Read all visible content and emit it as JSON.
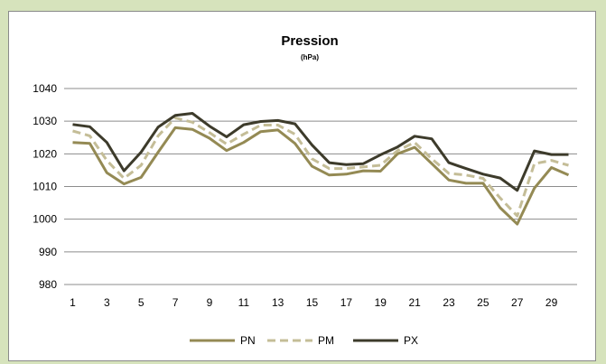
{
  "chart_data": {
    "type": "line",
    "title": "Pression",
    "subtitle": "(hPa)",
    "xlabel": "",
    "ylabel": "",
    "x": [
      1,
      2,
      3,
      4,
      5,
      6,
      7,
      8,
      9,
      10,
      11,
      12,
      13,
      14,
      15,
      16,
      17,
      18,
      19,
      20,
      21,
      22,
      23,
      24,
      25,
      26,
      27,
      28,
      29,
      30
    ],
    "x_tick_labels": [
      "1",
      "3",
      "5",
      "7",
      "9",
      "11",
      "13",
      "15",
      "17",
      "19",
      "21",
      "23",
      "25",
      "27",
      "29"
    ],
    "ylim": [
      980,
      1040
    ],
    "y_ticks": [
      "980",
      "990",
      "1000",
      "1010",
      "1020",
      "1030",
      "1040"
    ],
    "grid": true,
    "legend_position": "bottom",
    "series": [
      {
        "name": "PN",
        "color": "#948a54",
        "dash": "solid",
        "values": [
          1023.5,
          1023.2,
          1014.2,
          1010.8,
          1012.8,
          1020.5,
          1028,
          1027.5,
          1024.8,
          1021,
          1023.5,
          1026.8,
          1027.3,
          1023.2,
          1016.2,
          1013.5,
          1013.8,
          1014.8,
          1014.7,
          1020,
          1022,
          1017,
          1012,
          1011,
          1011,
          1003.5,
          998.5,
          1009.5,
          1015.8,
          1013.5
        ]
      },
      {
        "name": "PM",
        "color": "#c4bd97",
        "dash": "dashed",
        "values": [
          1027,
          1025.5,
          1018,
          1012.5,
          1016.5,
          1025.5,
          1031,
          1029.7,
          1026.5,
          1023,
          1026,
          1028.8,
          1028.8,
          1026,
          1018.5,
          1015.5,
          1015.5,
          1016,
          1016.5,
          1021,
          1023.5,
          1018.5,
          1014,
          1013.5,
          1012.5,
          1006.5,
          1001,
          1017,
          1018,
          1016.5
        ]
      },
      {
        "name": "PX",
        "color": "#3d3b2b",
        "dash": "solid",
        "values": [
          1029,
          1028.3,
          1023.5,
          1014.8,
          1020.5,
          1028.2,
          1031.8,
          1032.4,
          1028.5,
          1025.2,
          1028.9,
          1029.9,
          1030.2,
          1029.2,
          1022.7,
          1017.3,
          1016.7,
          1017,
          1019.7,
          1022.1,
          1025.4,
          1024.6,
          1017.3,
          1015.5,
          1013.8,
          1012.6,
          1008.8,
          1020.9,
          1019.8,
          1019.8
        ]
      }
    ]
  }
}
